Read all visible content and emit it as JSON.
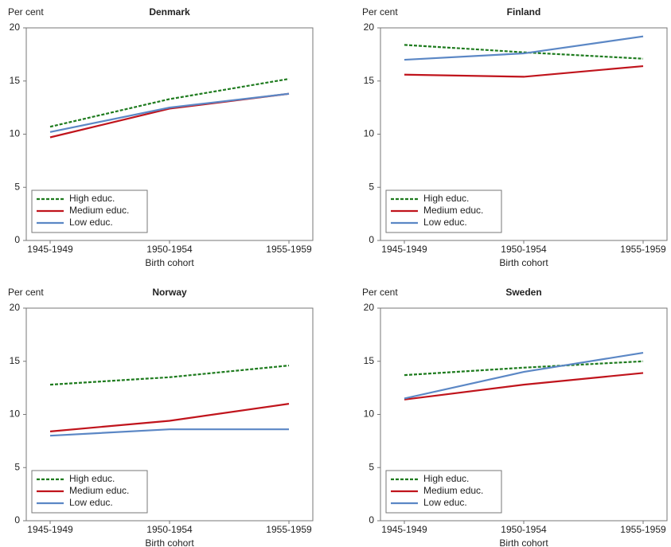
{
  "chart_data": [
    {
      "type": "line",
      "title": "Denmark",
      "y_label": "Per cent",
      "x_label": "Birth cohort",
      "categories": [
        "1945-1949",
        "1950-1954",
        "1955-1959"
      ],
      "series": [
        {
          "name": "High educ.",
          "color": "#1e7b1e",
          "dashed": true,
          "values": [
            10.7,
            13.3,
            15.2
          ]
        },
        {
          "name": "Medium educ.",
          "color": "#c0141c",
          "dashed": false,
          "values": [
            9.7,
            12.4,
            13.8
          ]
        },
        {
          "name": "Low educ.",
          "color": "#5b87c5",
          "dashed": false,
          "values": [
            10.2,
            12.5,
            13.8
          ]
        }
      ],
      "ylim": [
        0,
        20
      ],
      "yticks": [
        0,
        5,
        10,
        15,
        20
      ],
      "legend": "lower left"
    },
    {
      "type": "line",
      "title": "Finland",
      "y_label": "Per cent",
      "x_label": "Birth cohort",
      "categories": [
        "1945-1949",
        "1950-1954",
        "1955-1959"
      ],
      "series": [
        {
          "name": "High educ.",
          "color": "#1e7b1e",
          "dashed": true,
          "values": [
            18.4,
            17.7,
            17.1
          ]
        },
        {
          "name": "Medium educ.",
          "color": "#c0141c",
          "dashed": false,
          "values": [
            15.6,
            15.4,
            16.4
          ]
        },
        {
          "name": "Low educ.",
          "color": "#5b87c5",
          "dashed": false,
          "values": [
            17.0,
            17.6,
            19.2
          ]
        }
      ],
      "ylim": [
        0,
        20
      ],
      "yticks": [
        0,
        5,
        10,
        15,
        20
      ],
      "legend": "lower left"
    },
    {
      "type": "line",
      "title": "Norway",
      "y_label": "Per cent",
      "x_label": "Birth cohort",
      "categories": [
        "1945-1949",
        "1950-1954",
        "1955-1959"
      ],
      "series": [
        {
          "name": "High educ.",
          "color": "#1e7b1e",
          "dashed": true,
          "values": [
            12.8,
            13.5,
            14.6
          ]
        },
        {
          "name": "Medium educ.",
          "color": "#c0141c",
          "dashed": false,
          "values": [
            8.4,
            9.4,
            11.0
          ]
        },
        {
          "name": "Low educ.",
          "color": "#5b87c5",
          "dashed": false,
          "values": [
            8.0,
            8.6,
            8.6
          ]
        }
      ],
      "ylim": [
        0,
        20
      ],
      "yticks": [
        0,
        5,
        10,
        15,
        20
      ],
      "legend": "lower left"
    },
    {
      "type": "line",
      "title": "Sweden",
      "y_label": "Per cent",
      "x_label": "Birth cohort",
      "categories": [
        "1945-1949",
        "1950-1954",
        "1955-1959"
      ],
      "series": [
        {
          "name": "High educ.",
          "color": "#1e7b1e",
          "dashed": true,
          "values": [
            13.7,
            14.4,
            15.0
          ]
        },
        {
          "name": "Medium educ.",
          "color": "#c0141c",
          "dashed": false,
          "values": [
            11.4,
            12.8,
            13.9
          ]
        },
        {
          "name": "Low educ.",
          "color": "#5b87c5",
          "dashed": false,
          "values": [
            11.5,
            14.0,
            15.8
          ]
        }
      ],
      "ylim": [
        0,
        20
      ],
      "yticks": [
        0,
        5,
        10,
        15,
        20
      ],
      "legend": "lower left"
    }
  ]
}
